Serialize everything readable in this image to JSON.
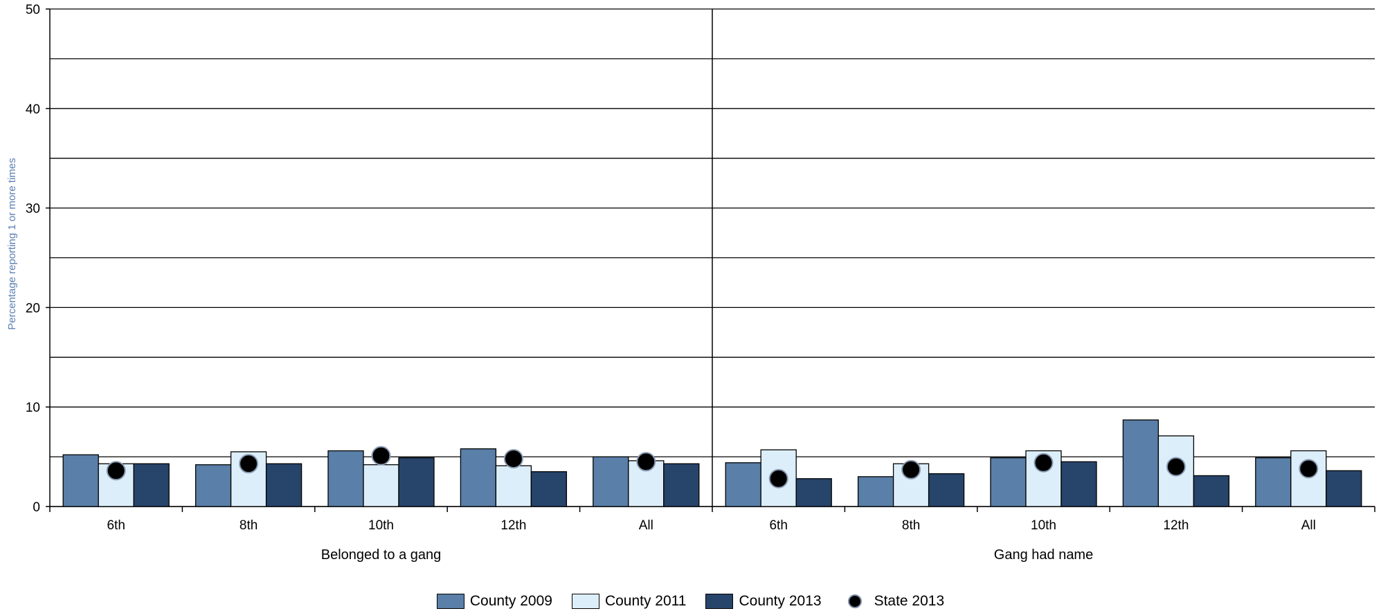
{
  "chart_data": {
    "type": "bar",
    "title": "",
    "ylabel": "Percentage reporting 1 or more times",
    "ylim": [
      0,
      50
    ],
    "yticks": [
      "0",
      "10",
      "20",
      "30",
      "40",
      "50"
    ],
    "grid": true,
    "legend_position": "bottom",
    "categories": [
      "6th",
      "8th",
      "10th",
      "12th",
      "All"
    ],
    "groups": [
      {
        "name": "Belonged to a gang",
        "series": [
          {
            "name": "County 2009",
            "values": [
              5.2,
              4.2,
              5.6,
              5.8,
              5.0
            ]
          },
          {
            "name": "County 2011",
            "values": [
              4.3,
              5.5,
              4.2,
              4.1,
              4.6
            ]
          },
          {
            "name": "County 2013",
            "values": [
              4.3,
              4.3,
              4.9,
              3.5,
              4.3
            ]
          },
          {
            "name": "State 2013",
            "values": [
              3.6,
              4.3,
              5.1,
              4.8,
              4.5
            ]
          }
        ]
      },
      {
        "name": "Gang had name",
        "series": [
          {
            "name": "County 2009",
            "values": [
              4.4,
              3.0,
              4.9,
              8.7,
              4.9
            ]
          },
          {
            "name": "County 2011",
            "values": [
              5.7,
              4.3,
              5.6,
              7.1,
              5.6
            ]
          },
          {
            "name": "County 2013",
            "values": [
              2.8,
              3.3,
              4.5,
              3.1,
              3.6
            ]
          },
          {
            "name": "State 2013",
            "values": [
              2.8,
              3.7,
              4.4,
              4.0,
              3.8
            ]
          }
        ]
      }
    ],
    "colors": {
      "County 2009": "#5a7fa8",
      "County 2011": "#ddeefb",
      "County 2013": "#27446b",
      "State 2013": "#000000"
    }
  },
  "legend": [
    {
      "label": "County 2009",
      "color": "#5a7fa8",
      "shape": "square"
    },
    {
      "label": "County 2011",
      "color": "#ddeefb",
      "shape": "square"
    },
    {
      "label": "County 2013",
      "color": "#27446b",
      "shape": "square"
    },
    {
      "label": "State 2013",
      "color": "#000000",
      "shape": "circle"
    }
  ]
}
